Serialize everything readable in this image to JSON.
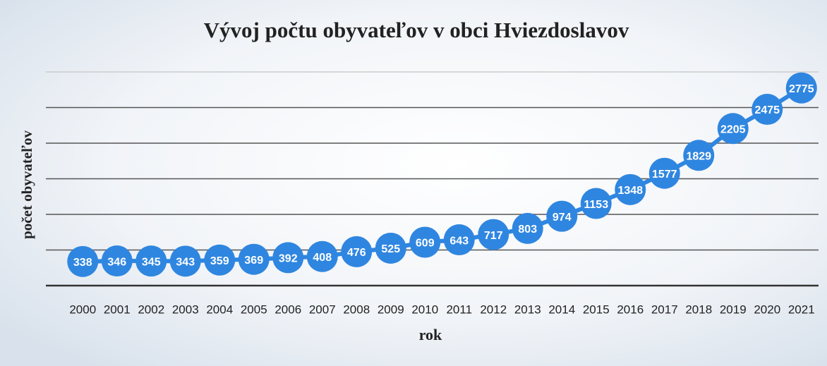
{
  "chart_data": {
    "type": "line",
    "title": "Vývoj počtu obyvateľov v obci Hviezdoslavov",
    "xlabel": "rok",
    "ylabel": "počet obyvateľov",
    "categories": [
      "2000",
      "2001",
      "2002",
      "2003",
      "2004",
      "2005",
      "2006",
      "2007",
      "2008",
      "2009",
      "2010",
      "2011",
      "2012",
      "2013",
      "2014",
      "2015",
      "2016",
      "2017",
      "2018",
      "2019",
      "2020",
      "2021"
    ],
    "series": [
      {
        "name": "počet obyvateľov",
        "color": "#2f86e0",
        "values": [
          338,
          346,
          345,
          343,
          359,
          369,
          392,
          408,
          476,
          525,
          609,
          643,
          717,
          803,
          974,
          1153,
          1348,
          1577,
          1829,
          2205,
          2475,
          2775
        ]
      }
    ],
    "ylim": [
      0,
      3000
    ],
    "yticks": [
      0,
      500,
      1000,
      1500,
      2000,
      2500,
      3000
    ],
    "grid": true
  }
}
